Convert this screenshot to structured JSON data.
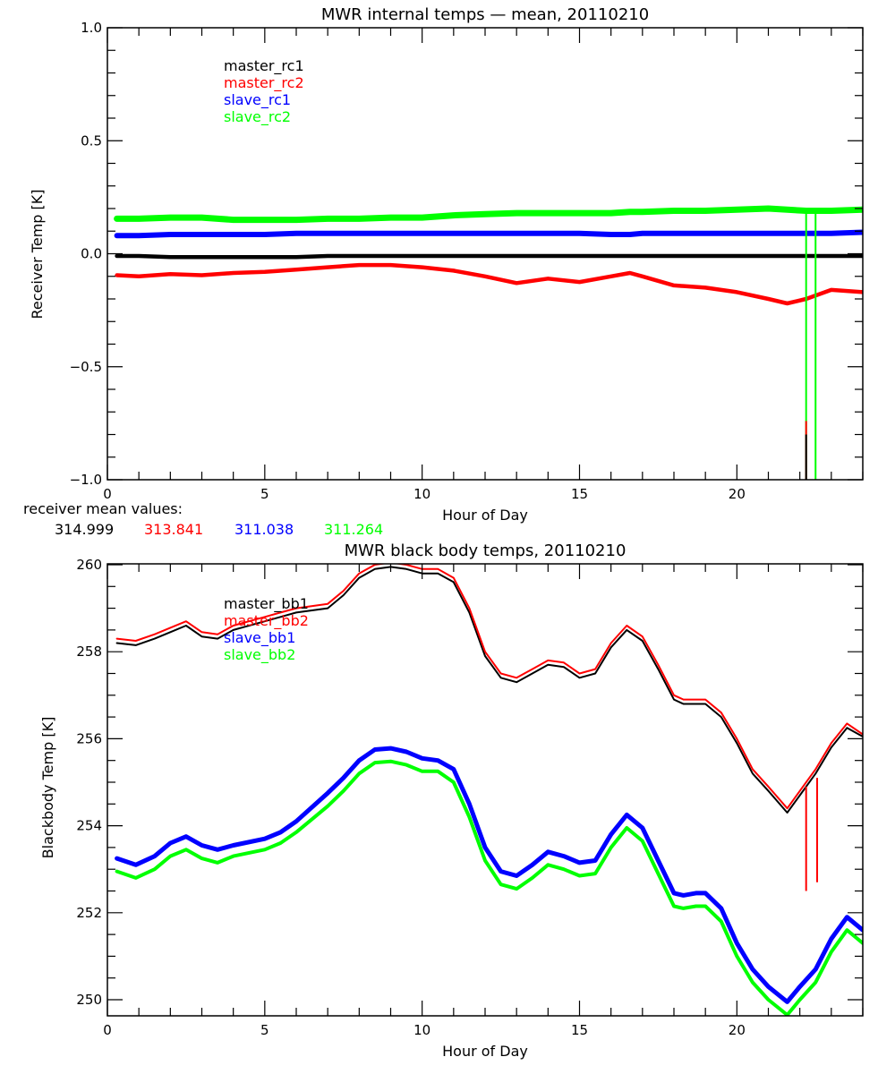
{
  "chart_data": [
    {
      "type": "line",
      "title": "MWR internal temps — mean, 20110210",
      "xlabel": "Hour of Day",
      "ylabel": "Receiver Temp [K]",
      "xlim": [
        0,
        24
      ],
      "ylim": [
        -1.0,
        1.0
      ],
      "xticks": [
        0,
        5,
        10,
        15,
        20
      ],
      "xtick_labels": [
        "0",
        "5",
        "10",
        "15",
        "20"
      ],
      "yticks": [
        -1.0,
        -0.5,
        0.0,
        0.5,
        1.0
      ],
      "ytick_labels": [
        "−1.0",
        "−0.5",
        "0.0",
        "0.5",
        "1.0"
      ],
      "grid": false,
      "legend_position": "top-left-inside",
      "x": [
        0.3,
        1,
        2,
        3,
        4,
        5,
        6,
        7,
        8,
        9,
        10,
        11,
        12,
        13,
        14,
        15,
        16,
        16.6,
        17,
        18,
        19,
        20,
        21,
        21.6,
        22.2,
        23,
        24
      ],
      "series": [
        {
          "name": "master_rc1",
          "color": "#000000",
          "values": [
            -0.01,
            -0.01,
            -0.015,
            -0.015,
            -0.015,
            -0.015,
            -0.015,
            -0.01,
            -0.01,
            -0.01,
            -0.01,
            -0.01,
            -0.01,
            -0.01,
            -0.01,
            -0.01,
            -0.01,
            -0.01,
            -0.01,
            -0.01,
            -0.01,
            -0.01,
            -0.01,
            -0.01,
            -0.01,
            -0.01,
            -0.01
          ]
        },
        {
          "name": "master_rc2",
          "color": "#ff0000",
          "values": [
            -0.095,
            -0.1,
            -0.09,
            -0.095,
            -0.085,
            -0.08,
            -0.07,
            -0.06,
            -0.05,
            -0.05,
            -0.06,
            -0.075,
            -0.1,
            -0.13,
            -0.11,
            -0.125,
            -0.1,
            -0.085,
            -0.1,
            -0.14,
            -0.15,
            -0.17,
            -0.2,
            -0.22,
            -0.2,
            -0.16,
            -0.17
          ]
        },
        {
          "name": "slave_rc1",
          "color": "#0000ff",
          "values": [
            0.08,
            0.08,
            0.085,
            0.085,
            0.085,
            0.085,
            0.09,
            0.09,
            0.09,
            0.09,
            0.09,
            0.09,
            0.09,
            0.09,
            0.09,
            0.09,
            0.085,
            0.085,
            0.09,
            0.09,
            0.09,
            0.09,
            0.09,
            0.09,
            0.09,
            0.09,
            0.095
          ]
        },
        {
          "name": "slave_rc2",
          "color": "#00ff00",
          "values": [
            0.155,
            0.155,
            0.16,
            0.16,
            0.15,
            0.15,
            0.15,
            0.155,
            0.155,
            0.16,
            0.16,
            0.17,
            0.175,
            0.18,
            0.18,
            0.18,
            0.18,
            0.185,
            0.185,
            0.19,
            0.19,
            0.195,
            0.2,
            0.195,
            0.19,
            0.19,
            0.195
          ]
        }
      ],
      "spikes": [
        {
          "x": 22.2,
          "color": "#00ff00",
          "from": 0.19,
          "to": -1.0
        },
        {
          "x": 22.5,
          "color": "#00ff00",
          "from": 0.19,
          "to": -1.0
        },
        {
          "x": 22.2,
          "color": "#ff0000",
          "from": -0.74,
          "to": -1.0
        },
        {
          "x": 22.2,
          "color": "#000000",
          "from": -0.8,
          "to": -1.0
        }
      ],
      "annotation": {
        "label": "receiver mean values:",
        "values": [
          {
            "text": "314.999",
            "color": "#000000"
          },
          {
            "text": "313.841",
            "color": "#ff0000"
          },
          {
            "text": "311.038",
            "color": "#0000ff"
          },
          {
            "text": "311.264",
            "color": "#00ff00"
          }
        ]
      }
    },
    {
      "type": "line",
      "title": "MWR black body temps, 20110210",
      "xlabel": "Hour of Day",
      "ylabel": "Blackbody Temp [K]",
      "xlim": [
        0,
        24
      ],
      "ylim": [
        249.63,
        260.02
      ],
      "xticks": [
        0,
        5,
        10,
        15,
        20
      ],
      "xtick_labels": [
        "0",
        "5",
        "10",
        "15",
        "20"
      ],
      "yticks": [
        250,
        252,
        254,
        256,
        258,
        260
      ],
      "ytick_labels": [
        "250",
        "252",
        "254",
        "256",
        "258",
        "260"
      ],
      "grid": false,
      "legend_position": "top-left-inside",
      "x": [
        0.3,
        0.9,
        1.5,
        2,
        2.5,
        3,
        3.5,
        4,
        5,
        5.5,
        6,
        7,
        7.5,
        8,
        8.5,
        9,
        9.5,
        10,
        10.5,
        11,
        11.5,
        12,
        12.5,
        13,
        13.5,
        14,
        14.5,
        15,
        15.5,
        16,
        16.5,
        17,
        17.5,
        18,
        18.3,
        18.7,
        19,
        19.5,
        20,
        20.5,
        21,
        21.6,
        22,
        22.5,
        23,
        23.5,
        24
      ],
      "series": [
        {
          "name": "master_bb1",
          "color": "#000000",
          "values": [
            258.2,
            258.15,
            258.3,
            258.45,
            258.6,
            258.35,
            258.3,
            258.5,
            258.7,
            258.8,
            258.9,
            259.0,
            259.3,
            259.7,
            259.9,
            259.95,
            259.9,
            259.8,
            259.8,
            259.6,
            258.9,
            257.9,
            257.4,
            257.3,
            257.5,
            257.7,
            257.65,
            257.4,
            257.5,
            258.1,
            258.5,
            258.25,
            257.6,
            256.9,
            256.8,
            256.8,
            256.8,
            256.5,
            255.9,
            255.2,
            254.8,
            254.3,
            254.7,
            255.2,
            255.8,
            256.25,
            256.05
          ]
        },
        {
          "name": "master_bb2",
          "color": "#ff0000",
          "values": [
            258.3,
            258.25,
            258.4,
            258.55,
            258.7,
            258.45,
            258.4,
            258.6,
            258.8,
            258.9,
            259.0,
            259.1,
            259.4,
            259.8,
            260.0,
            260.05,
            260.0,
            259.9,
            259.9,
            259.7,
            259.0,
            258.0,
            257.5,
            257.4,
            257.6,
            257.8,
            257.75,
            257.5,
            257.6,
            258.2,
            258.6,
            258.35,
            257.7,
            257.0,
            256.9,
            256.9,
            256.9,
            256.6,
            256.0,
            255.3,
            254.9,
            254.4,
            254.8,
            255.3,
            255.9,
            256.35,
            256.1
          ]
        },
        {
          "name": "slave_bb1",
          "color": "#0000ff",
          "values": [
            253.25,
            253.1,
            253.3,
            253.6,
            253.75,
            253.55,
            253.45,
            253.55,
            253.7,
            253.85,
            254.1,
            254.75,
            255.1,
            255.5,
            255.75,
            255.78,
            255.7,
            255.55,
            255.5,
            255.3,
            254.5,
            253.5,
            252.95,
            252.85,
            253.1,
            253.4,
            253.3,
            253.15,
            253.2,
            253.8,
            254.25,
            253.95,
            253.2,
            252.45,
            252.4,
            252.45,
            252.45,
            252.1,
            251.3,
            250.7,
            250.3,
            249.95,
            250.3,
            250.7,
            251.4,
            251.9,
            251.6
          ]
        },
        {
          "name": "slave_bb2",
          "color": "#00ff00",
          "values": [
            252.95,
            252.8,
            253.0,
            253.3,
            253.45,
            253.25,
            253.15,
            253.3,
            253.45,
            253.6,
            253.85,
            254.45,
            254.8,
            255.2,
            255.45,
            255.48,
            255.4,
            255.25,
            255.25,
            255.0,
            254.2,
            253.2,
            252.65,
            252.55,
            252.8,
            253.1,
            253.0,
            252.85,
            252.9,
            253.5,
            253.95,
            253.65,
            252.9,
            252.15,
            252.1,
            252.15,
            252.15,
            251.8,
            251.0,
            250.4,
            250.0,
            249.65,
            250.0,
            250.4,
            251.1,
            251.6,
            251.3
          ]
        }
      ],
      "spikes": [
        {
          "x": 22.2,
          "color": "#ff0000",
          "from": 254.9,
          "to": 252.5
        },
        {
          "x": 22.55,
          "color": "#ff0000",
          "from": 255.1,
          "to": 252.7
        }
      ]
    }
  ]
}
